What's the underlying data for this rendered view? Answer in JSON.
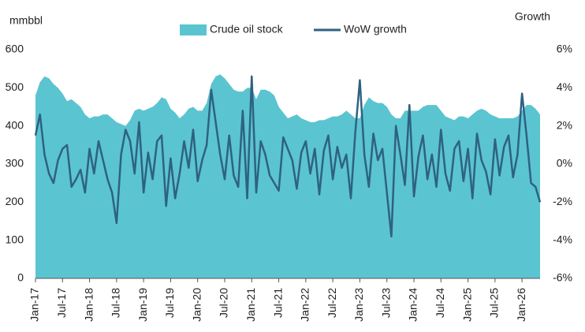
{
  "chart_data": {
    "type": "area-line",
    "y_label": "mmbbl",
    "y2_label": "Growth",
    "categories": [
      "Jan-17",
      null,
      null,
      null,
      null,
      null,
      "Jul-17",
      null,
      null,
      null,
      null,
      null,
      "Jan-18",
      null,
      null,
      null,
      null,
      null,
      "Jul-18",
      null,
      null,
      null,
      null,
      null,
      "Jan-19",
      null,
      null,
      null,
      null,
      null,
      "Jul-19",
      null,
      null,
      null,
      null,
      null,
      "Jan-20",
      null,
      null,
      null,
      null,
      null,
      "Jul-20",
      null,
      null,
      null,
      null,
      null,
      "Jan-21",
      null,
      null,
      null,
      null,
      null,
      "Jul-21",
      null,
      null,
      null,
      null,
      null,
      "Jan-22",
      null,
      null,
      null,
      null,
      null,
      "Jul-22",
      null,
      null,
      null,
      null,
      null,
      "Jan-23",
      null,
      null,
      null,
      null,
      null,
      "Jul-23",
      null,
      null,
      null,
      null,
      null,
      "Jan-24",
      null,
      null,
      null,
      null,
      null,
      "Jul-24",
      null,
      null,
      null,
      null,
      null,
      "Jan-25",
      null,
      null,
      null,
      null,
      null,
      "Jul-25",
      null,
      null,
      null,
      null,
      null,
      "Jan-26",
      null,
      null,
      null,
      null
    ],
    "series": [
      {
        "name": "Crude oil stock",
        "type": "area",
        "color": "#5bc4d1",
        "values": [
          480,
          515,
          530,
          525,
          510,
          500,
          485,
          465,
          470,
          460,
          450,
          430,
          420,
          425,
          425,
          430,
          430,
          420,
          410,
          405,
          400,
          415,
          440,
          445,
          440,
          445,
          450,
          460,
          475,
          470,
          445,
          435,
          420,
          430,
          445,
          450,
          440,
          440,
          460,
          510,
          530,
          535,
          525,
          510,
          495,
          490,
          490,
          500,
          500,
          470,
          495,
          495,
          490,
          480,
          450,
          435,
          420,
          425,
          430,
          420,
          415,
          410,
          410,
          415,
          415,
          420,
          425,
          425,
          430,
          440,
          430,
          420,
          420,
          455,
          475,
          465,
          460,
          460,
          450,
          430,
          420,
          420,
          440,
          440,
          440,
          440,
          450,
          455,
          455,
          455,
          440,
          425,
          420,
          415,
          425,
          425,
          420,
          430,
          440,
          445,
          440,
          430,
          425,
          420,
          420,
          420,
          420,
          425,
          440,
          455,
          455,
          445,
          430
        ]
      },
      {
        "name": "WoW growth",
        "type": "line",
        "axis": "y2",
        "color": "#2e6280",
        "values": [
          1.5,
          2.6,
          0.5,
          -0.5,
          -1.0,
          0.2,
          0.8,
          1.0,
          -1.2,
          -0.8,
          -0.3,
          -1.5,
          0.8,
          -0.5,
          1.2,
          0.2,
          -0.8,
          -1.5,
          -3.1,
          0.5,
          1.8,
          1.2,
          -0.5,
          2.2,
          -1.5,
          0.6,
          -0.8,
          1.2,
          1.5,
          -2.2,
          0.3,
          -1.8,
          -0.5,
          1.2,
          -0.2,
          1.8,
          -0.9,
          0.2,
          1.0,
          3.9,
          2.2,
          0.5,
          -0.8,
          1.5,
          -0.6,
          -1.2,
          2.8,
          -1.8,
          4.6,
          -1.5,
          1.2,
          0.5,
          -0.6,
          -1.0,
          -1.4,
          1.4,
          0.8,
          0.2,
          -1.3,
          0.6,
          1.2,
          -0.5,
          0.8,
          -1.6,
          0.7,
          1.5,
          -0.8,
          0.9,
          -0.2,
          0.5,
          -1.8,
          1.7,
          4.4,
          0.5,
          -1.2,
          1.6,
          0.2,
          0.8,
          -1.5,
          -3.8,
          2.0,
          0.5,
          -1.1,
          3.1,
          -1.7,
          0.4,
          1.5,
          -0.8,
          0.5,
          -1.2,
          1.8,
          -0.5,
          -1.4,
          0.8,
          1.2,
          -0.9,
          0.8,
          -1.8,
          1.6,
          0.2,
          -0.4,
          -1.6,
          1.3,
          -0.6,
          0.9,
          1.5,
          -0.7,
          0.5,
          3.7,
          1.5,
          -1.0,
          -1.2,
          -2.0
        ]
      }
    ],
    "ylim": [
      0,
      600
    ],
    "yticks": [
      0,
      100,
      200,
      300,
      400,
      500,
      600
    ],
    "y2lim": [
      -6,
      6
    ],
    "y2ticks": [
      {
        "value": -6,
        "label": "-6%"
      },
      {
        "value": -4,
        "label": "-4%"
      },
      {
        "value": -2,
        "label": "-2%"
      },
      {
        "value": 0,
        "label": "0%"
      },
      {
        "value": 2,
        "label": "2%"
      },
      {
        "value": 4,
        "label": "4%"
      },
      {
        "value": 6,
        "label": "6%"
      }
    ],
    "grid": false,
    "legend": "top"
  }
}
